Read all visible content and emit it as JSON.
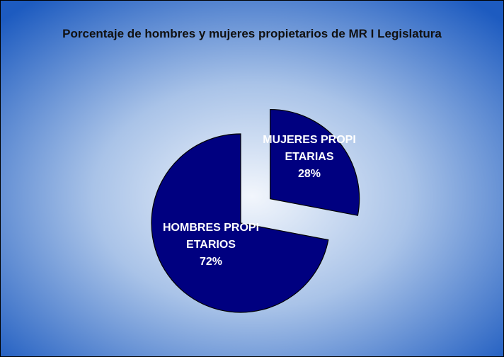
{
  "chart_data": {
    "type": "pie",
    "title": "Porcentaje de hombres y mujeres propietarios de MR I Legislatura",
    "categories": [
      "MUJERES PROPIETARIAS",
      "HOMBRES PROPIETARIOS"
    ],
    "values": [
      28,
      72
    ],
    "value_labels": [
      "28%",
      "72%"
    ],
    "color": "#000080"
  }
}
